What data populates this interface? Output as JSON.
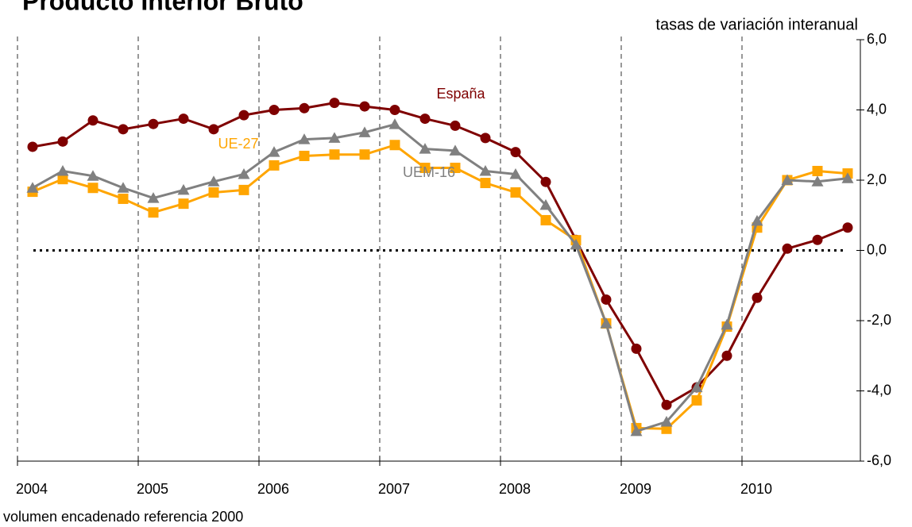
{
  "chart_data": {
    "type": "line",
    "title": "Producto Interior Bruto",
    "subtitle": "tasas de variación interanual",
    "note": "volumen encadenado referencia 2000",
    "x": [
      2004.125,
      2004.375,
      2004.625,
      2004.875,
      2005.125,
      2005.375,
      2005.625,
      2005.875,
      2006.125,
      2006.375,
      2006.625,
      2006.875,
      2007.125,
      2007.375,
      2007.625,
      2007.875,
      2008.125,
      2008.375,
      2008.625,
      2008.875,
      2009.125,
      2009.375,
      2009.625,
      2009.875,
      2010.125,
      2010.375,
      2010.625,
      2010.875
    ],
    "xlim": [
      2004,
      2011
    ],
    "xticks": [
      2004,
      2005,
      2006,
      2007,
      2008,
      2009,
      2010
    ],
    "ylim": [
      -6,
      6
    ],
    "yticks": [
      {
        "value": -6,
        "label": "-6,0"
      },
      {
        "value": -4,
        "label": "-4,0"
      },
      {
        "value": -2,
        "label": "-2,0"
      },
      {
        "value": 0,
        "label": "0,0"
      },
      {
        "value": 2,
        "label": "2,0"
      },
      {
        "value": 4,
        "label": "4,0"
      },
      {
        "value": 6,
        "label": "6,0"
      }
    ],
    "grid": true,
    "series": [
      {
        "name": "España",
        "color": "#7f0000",
        "marker": "circle",
        "values": [
          2.95,
          3.1,
          3.7,
          3.45,
          3.6,
          3.75,
          3.45,
          3.85,
          4.0,
          4.05,
          4.2,
          4.1,
          4.0,
          3.75,
          3.55,
          3.2,
          2.8,
          1.95,
          0.3,
          -1.4,
          -2.8,
          -4.4,
          -3.9,
          -3.0,
          -1.35,
          0.05,
          0.3,
          0.65
        ]
      },
      {
        "name": "UE-27",
        "color": "#ffa500",
        "marker": "square",
        "values": [
          1.67,
          2.03,
          1.78,
          1.47,
          1.08,
          1.33,
          1.65,
          1.72,
          2.42,
          2.69,
          2.73,
          2.73,
          3.0,
          2.35,
          2.35,
          1.92,
          1.65,
          0.86,
          0.29,
          -2.08,
          -5.06,
          -5.08,
          -4.27,
          -2.17,
          0.65,
          2.0,
          2.26,
          2.19
        ]
      },
      {
        "name": "UEM-16",
        "color": "#808080",
        "marker": "triangle",
        "values": [
          1.78,
          2.26,
          2.12,
          1.78,
          1.49,
          1.72,
          1.96,
          2.17,
          2.8,
          3.16,
          3.2,
          3.36,
          3.59,
          2.89,
          2.84,
          2.26,
          2.17,
          1.29,
          0.16,
          -2.08,
          -5.15,
          -4.88,
          -3.9,
          -2.12,
          0.84,
          2.0,
          1.96,
          2.05
        ]
      }
    ]
  }
}
